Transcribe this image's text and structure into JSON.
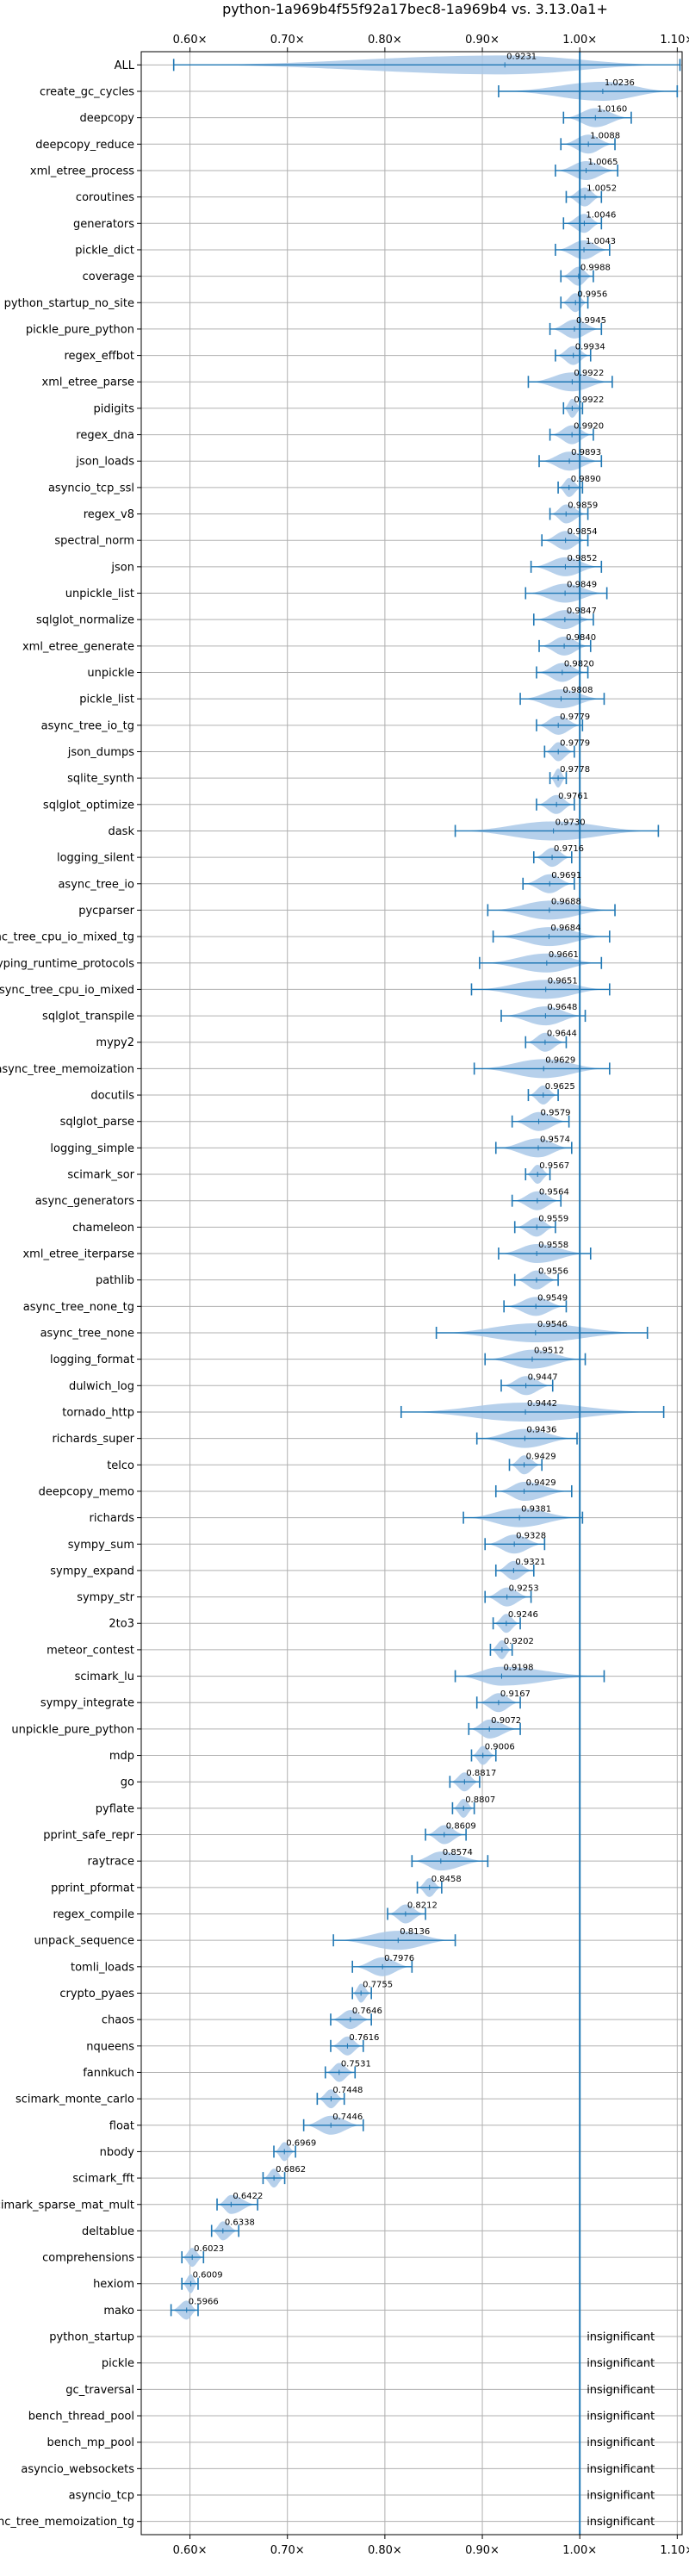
{
  "chart_data": {
    "type": "violin",
    "title": "python-1a969b4f55f92a17bec8-1a969b4 vs. 3.13.0a1+",
    "xlim": [
      0.55,
      1.105
    ],
    "xticks": [
      0.6,
      0.7,
      0.8,
      0.9,
      1.0,
      1.1
    ],
    "xtick_labels": [
      "0.60×",
      "0.70×",
      "0.80×",
      "0.90×",
      "1.00×",
      "1.10×"
    ],
    "reference_line": 1.0,
    "insignificant_label": "insignificant",
    "benchmarks": [
      {
        "name": "ALL",
        "value": 0.9231,
        "label": "0.9231",
        "min": 0.5833,
        "max": 1.1028
      },
      {
        "name": "create_gc_cycles",
        "value": 1.0236,
        "label": "1.0236",
        "min": 0.9167,
        "max": 1.1
      },
      {
        "name": "deepcopy",
        "value": 1.016,
        "label": "1.0160",
        "min": 0.9833,
        "max": 1.0528
      },
      {
        "name": "deepcopy_reduce",
        "value": 1.0088,
        "label": "1.0088",
        "min": 0.9806,
        "max": 1.0361
      },
      {
        "name": "xml_etree_process",
        "value": 1.0065,
        "label": "1.0065",
        "min": 0.975,
        "max": 1.0389
      },
      {
        "name": "coroutines",
        "value": 1.0052,
        "label": "1.0052",
        "min": 0.9861,
        "max": 1.0222
      },
      {
        "name": "generators",
        "value": 1.0046,
        "label": "1.0046",
        "min": 0.9833,
        "max": 1.0222
      },
      {
        "name": "pickle_dict",
        "value": 1.0043,
        "label": "1.0043",
        "min": 0.975,
        "max": 1.0306
      },
      {
        "name": "coverage",
        "value": 0.9988,
        "label": "0.9988",
        "min": 0.9806,
        "max": 1.0139
      },
      {
        "name": "python_startup_no_site",
        "value": 0.9956,
        "label": "0.9956",
        "min": 0.9806,
        "max": 1.0083
      },
      {
        "name": "pickle_pure_python",
        "value": 0.9945,
        "label": "0.9945",
        "min": 0.9694,
        "max": 1.0222
      },
      {
        "name": "regex_effbot",
        "value": 0.9934,
        "label": "0.9934",
        "min": 0.975,
        "max": 1.0111
      },
      {
        "name": "xml_etree_parse",
        "value": 0.9922,
        "label": "0.9922",
        "min": 0.9472,
        "max": 1.0333
      },
      {
        "name": "pidigits",
        "value": 0.9922,
        "label": "0.9922",
        "min": 0.9833,
        "max": 1.0028
      },
      {
        "name": "regex_dna",
        "value": 0.992,
        "label": "0.9920",
        "min": 0.9694,
        "max": 1.0139
      },
      {
        "name": "json_loads",
        "value": 0.9893,
        "label": "0.9893",
        "min": 0.9583,
        "max": 1.0222
      },
      {
        "name": "asyncio_tcp_ssl",
        "value": 0.989,
        "label": "0.9890",
        "min": 0.9778,
        "max": 1.0028
      },
      {
        "name": "regex_v8",
        "value": 0.9859,
        "label": "0.9859",
        "min": 0.9694,
        "max": 1.0083
      },
      {
        "name": "spectral_norm",
        "value": 0.9854,
        "label": "0.9854",
        "min": 0.9611,
        "max": 1.0083
      },
      {
        "name": "json",
        "value": 0.9852,
        "label": "0.9852",
        "min": 0.95,
        "max": 1.0222
      },
      {
        "name": "unpickle_list",
        "value": 0.9849,
        "label": "0.9849",
        "min": 0.9444,
        "max": 1.0278
      },
      {
        "name": "sqlglot_normalize",
        "value": 0.9847,
        "label": "0.9847",
        "min": 0.9528,
        "max": 1.0139
      },
      {
        "name": "xml_etree_generate",
        "value": 0.984,
        "label": "0.9840",
        "min": 0.9583,
        "max": 1.0111
      },
      {
        "name": "unpickle",
        "value": 0.982,
        "label": "0.9820",
        "min": 0.9556,
        "max": 1.0083
      },
      {
        "name": "pickle_list",
        "value": 0.9808,
        "label": "0.9808",
        "min": 0.9389,
        "max": 1.025
      },
      {
        "name": "async_tree_io_tg",
        "value": 0.9779,
        "label": "0.9779",
        "min": 0.9556,
        "max": 1.0028
      },
      {
        "name": "json_dumps",
        "value": 0.9779,
        "label": "0.9779",
        "min": 0.9639,
        "max": 0.9944
      },
      {
        "name": "sqlite_synth",
        "value": 0.9778,
        "label": "0.9778",
        "min": 0.9694,
        "max": 0.9861
      },
      {
        "name": "sqlglot_optimize",
        "value": 0.9761,
        "label": "0.9761",
        "min": 0.9556,
        "max": 0.9944
      },
      {
        "name": "dask",
        "value": 0.973,
        "label": "0.9730",
        "min": 0.8722,
        "max": 1.0806
      },
      {
        "name": "logging_silent",
        "value": 0.9716,
        "label": "0.9716",
        "min": 0.9528,
        "max": 0.9917
      },
      {
        "name": "async_tree_io",
        "value": 0.9691,
        "label": "0.9691",
        "min": 0.9417,
        "max": 0.9944
      },
      {
        "name": "pycparser",
        "value": 0.9688,
        "label": "0.9688",
        "min": 0.9056,
        "max": 1.0361
      },
      {
        "name": "async_tree_cpu_io_mixed_tg",
        "value": 0.9684,
        "label": "0.9684",
        "min": 0.9111,
        "max": 1.0306
      },
      {
        "name": "typing_runtime_protocols",
        "value": 0.9661,
        "label": "0.9661",
        "min": 0.8972,
        "max": 1.0222
      },
      {
        "name": "async_tree_cpu_io_mixed",
        "value": 0.9651,
        "label": "0.9651",
        "min": 0.8889,
        "max": 1.0306
      },
      {
        "name": "sqlglot_transpile",
        "value": 0.9648,
        "label": "0.9648",
        "min": 0.9194,
        "max": 1.0056
      },
      {
        "name": "mypy2",
        "value": 0.9644,
        "label": "0.9644",
        "min": 0.9444,
        "max": 0.9861
      },
      {
        "name": "async_tree_memoization",
        "value": 0.9629,
        "label": "0.9629",
        "min": 0.8917,
        "max": 1.0306
      },
      {
        "name": "docutils",
        "value": 0.9625,
        "label": "0.9625",
        "min": 0.9472,
        "max": 0.9778
      },
      {
        "name": "sqlglot_parse",
        "value": 0.9579,
        "label": "0.9579",
        "min": 0.9306,
        "max": 0.9889
      },
      {
        "name": "logging_simple",
        "value": 0.9574,
        "label": "0.9574",
        "min": 0.9139,
        "max": 0.9917
      },
      {
        "name": "scimark_sor",
        "value": 0.9567,
        "label": "0.9567",
        "min": 0.9444,
        "max": 0.9694
      },
      {
        "name": "async_generators",
        "value": 0.9564,
        "label": "0.9564",
        "min": 0.9306,
        "max": 0.9806
      },
      {
        "name": "chameleon",
        "value": 0.9559,
        "label": "0.9559",
        "min": 0.9333,
        "max": 0.975
      },
      {
        "name": "xml_etree_iterparse",
        "value": 0.9558,
        "label": "0.9558",
        "min": 0.9167,
        "max": 1.0111
      },
      {
        "name": "pathlib",
        "value": 0.9556,
        "label": "0.9556",
        "min": 0.9333,
        "max": 0.9778
      },
      {
        "name": "async_tree_none_tg",
        "value": 0.9549,
        "label": "0.9549",
        "min": 0.9222,
        "max": 0.9861
      },
      {
        "name": "async_tree_none",
        "value": 0.9546,
        "label": "0.9546",
        "min": 0.8528,
        "max": 1.0694
      },
      {
        "name": "logging_format",
        "value": 0.9512,
        "label": "0.9512",
        "min": 0.9028,
        "max": 1.0056
      },
      {
        "name": "dulwich_log",
        "value": 0.9447,
        "label": "0.9447",
        "min": 0.9194,
        "max": 0.9722
      },
      {
        "name": "tornado_http",
        "value": 0.9442,
        "label": "0.9442",
        "min": 0.8167,
        "max": 1.0861
      },
      {
        "name": "richards_super",
        "value": 0.9436,
        "label": "0.9436",
        "min": 0.8944,
        "max": 0.9972
      },
      {
        "name": "telco",
        "value": 0.9429,
        "label": "0.9429",
        "min": 0.9278,
        "max": 0.9611
      },
      {
        "name": "deepcopy_memo",
        "value": 0.9429,
        "label": "0.9429",
        "min": 0.9139,
        "max": 0.9917
      },
      {
        "name": "richards",
        "value": 0.9381,
        "label": "0.9381",
        "min": 0.8806,
        "max": 1.0028
      },
      {
        "name": "sympy_sum",
        "value": 0.9328,
        "label": "0.9328",
        "min": 0.9028,
        "max": 0.9639
      },
      {
        "name": "sympy_expand",
        "value": 0.9321,
        "label": "0.9321",
        "min": 0.9139,
        "max": 0.9528
      },
      {
        "name": "sympy_str",
        "value": 0.9253,
        "label": "0.9253",
        "min": 0.9028,
        "max": 0.95
      },
      {
        "name": "2to3",
        "value": 0.9246,
        "label": "0.9246",
        "min": 0.9111,
        "max": 0.9389
      },
      {
        "name": "meteor_contest",
        "value": 0.9202,
        "label": "0.9202",
        "min": 0.9083,
        "max": 0.9306
      },
      {
        "name": "scimark_lu",
        "value": 0.9198,
        "label": "0.9198",
        "min": 0.8722,
        "max": 1.025
      },
      {
        "name": "sympy_integrate",
        "value": 0.9167,
        "label": "0.9167",
        "min": 0.8944,
        "max": 0.9389
      },
      {
        "name": "unpickle_pure_python",
        "value": 0.9072,
        "label": "0.9072",
        "min": 0.8861,
        "max": 0.9389
      },
      {
        "name": "mdp",
        "value": 0.9006,
        "label": "0.9006",
        "min": 0.8889,
        "max": 0.9139
      },
      {
        "name": "go",
        "value": 0.8817,
        "label": "0.8817",
        "min": 0.8667,
        "max": 0.8972
      },
      {
        "name": "pyflate",
        "value": 0.8807,
        "label": "0.8807",
        "min": 0.8694,
        "max": 0.8917
      },
      {
        "name": "pprint_safe_repr",
        "value": 0.8609,
        "label": "0.8609",
        "min": 0.8417,
        "max": 0.8833
      },
      {
        "name": "raytrace",
        "value": 0.8574,
        "label": "0.8574",
        "min": 0.8278,
        "max": 0.9056
      },
      {
        "name": "pprint_pformat",
        "value": 0.8458,
        "label": "0.8458",
        "min": 0.8333,
        "max": 0.8583
      },
      {
        "name": "regex_compile",
        "value": 0.8212,
        "label": "0.8212",
        "min": 0.8028,
        "max": 0.8417
      },
      {
        "name": "unpack_sequence",
        "value": 0.8136,
        "label": "0.8136",
        "min": 0.7472,
        "max": 0.8722
      },
      {
        "name": "tomli_loads",
        "value": 0.7976,
        "label": "0.7976",
        "min": 0.7667,
        "max": 0.8278
      },
      {
        "name": "crypto_pyaes",
        "value": 0.7755,
        "label": "0.7755",
        "min": 0.7667,
        "max": 0.7861
      },
      {
        "name": "chaos",
        "value": 0.7646,
        "label": "0.7646",
        "min": 0.7444,
        "max": 0.7861
      },
      {
        "name": "nqueens",
        "value": 0.7616,
        "label": "0.7616",
        "min": 0.7444,
        "max": 0.7778
      },
      {
        "name": "fannkuch",
        "value": 0.7531,
        "label": "0.7531",
        "min": 0.7389,
        "max": 0.7694
      },
      {
        "name": "scimark_monte_carlo",
        "value": 0.7448,
        "label": "0.7448",
        "min": 0.7306,
        "max": 0.7583
      },
      {
        "name": "float",
        "value": 0.7446,
        "label": "0.7446",
        "min": 0.7167,
        "max": 0.7778
      },
      {
        "name": "nbody",
        "value": 0.6969,
        "label": "0.6969",
        "min": 0.6861,
        "max": 0.7083
      },
      {
        "name": "scimark_fft",
        "value": 0.6862,
        "label": "0.6862",
        "min": 0.675,
        "max": 0.6972
      },
      {
        "name": "scimark_sparse_mat_mult",
        "value": 0.6422,
        "label": "0.6422",
        "min": 0.6278,
        "max": 0.6694
      },
      {
        "name": "deltablue",
        "value": 0.6338,
        "label": "0.6338",
        "min": 0.6222,
        "max": 0.65
      },
      {
        "name": "comprehensions",
        "value": 0.6023,
        "label": "0.6023",
        "min": 0.5917,
        "max": 0.6139
      },
      {
        "name": "hexiom",
        "value": 0.6009,
        "label": "0.6009",
        "min": 0.5917,
        "max": 0.6083
      },
      {
        "name": "mako",
        "value": 0.5966,
        "label": "0.5966",
        "min": 0.5806,
        "max": 0.6083
      },
      {
        "name": "python_startup",
        "insignificant": true
      },
      {
        "name": "pickle",
        "insignificant": true
      },
      {
        "name": "gc_traversal",
        "insignificant": true
      },
      {
        "name": "bench_thread_pool",
        "insignificant": true
      },
      {
        "name": "bench_mp_pool",
        "insignificant": true
      },
      {
        "name": "asyncio_websockets",
        "insignificant": true
      },
      {
        "name": "asyncio_tcp",
        "insignificant": true
      },
      {
        "name": "async_tree_memoization_tg",
        "insignificant": true
      }
    ],
    "colors": {
      "violin_fill": "#a9c8e8",
      "line": "#1f77b4",
      "grid": "#b0b0b0",
      "axis": "#000000"
    }
  }
}
